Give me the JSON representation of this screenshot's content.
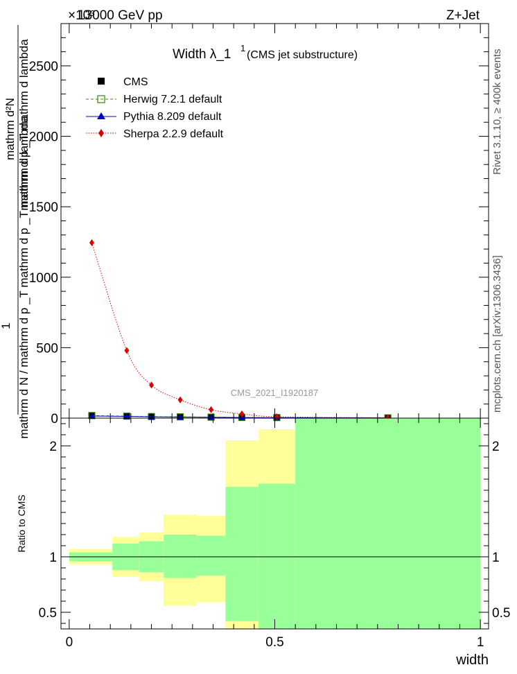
{
  "header": {
    "energy_label": "13000 GeV pp",
    "process_label": "Z+Jet",
    "exponent_label": "×10³"
  },
  "side_labels": {
    "rivet": "Rivet 3.1.10, ≥ 400k events",
    "mcplots": "mcplots.cern.ch [arXiv:1306.3436]"
  },
  "watermark": "CMS_2021_I1920187",
  "colors": {
    "cms": "#000000",
    "herwig": "#2e8b00",
    "pythia": "#0000cc",
    "sherpa": "#dd0000",
    "band_inner": "#99ff99",
    "band_outer": "#ffff99"
  },
  "chart_data": [
    {
      "type": "line",
      "title": "Width λ_1¹",
      "title_main": "Width λ_1",
      "title_sup": "1",
      "subtitle": "(CMS jet substructure)",
      "xlabel": "width",
      "ylabel_parts": [
        "1",
        "mathrm d N / mathrm d p  _T mathrm d p  _T mathrm d lambda",
        "mathrm d²N",
        "mathrm d p  _T  mathrm d lambda"
      ],
      "ylabel_top": "mathrm d²N",
      "ylabel_top_sub": "mathrm d p  _T  mathrm d lambda",
      "ylabel_one": "1",
      "ylabel_bottom": "mathrm d N / mathrm d p  _T mathrm d p  _T mathrm d lambda",
      "xlim": [
        -0.02,
        1.02
      ],
      "ylim": [
        0,
        2800
      ],
      "y_scale_note": "×10³",
      "xticks": [
        0,
        0.5,
        1
      ],
      "xtick_labels": [
        "0",
        "0.5",
        "1"
      ],
      "yticks": [
        0,
        500,
        1000,
        1500,
        2000,
        2500
      ],
      "ytick_labels": [
        "0",
        "500",
        "1000",
        "1500",
        "2000",
        "2500"
      ],
      "legend": [
        "CMS",
        "Herwig 7.2.1 default",
        "Pythia 8.209 default",
        "Sherpa 2.2.9 default"
      ],
      "legend_position": "top-left",
      "series": [
        {
          "name": "CMS",
          "x": [
            0.055,
            0.14,
            0.2,
            0.27,
            0.345,
            0.42,
            0.505,
            0.775
          ],
          "y": [
            20,
            15,
            12,
            10,
            8,
            6,
            4,
            2
          ]
        },
        {
          "name": "Herwig 7.2.1 default",
          "x": [
            0.055,
            0.14,
            0.2,
            0.27,
            0.345,
            0.42,
            0.505,
            0.775
          ],
          "y": [
            18,
            14,
            11,
            9,
            7,
            5,
            4,
            2
          ]
        },
        {
          "name": "Pythia 8.209 default",
          "x": [
            0.055,
            0.14,
            0.2,
            0.27,
            0.345,
            0.42,
            0.505,
            0.775
          ],
          "y": [
            15,
            12,
            10,
            8,
            6,
            4,
            3,
            2
          ]
        },
        {
          "name": "Sherpa 2.2.9 default",
          "x": [
            0.055,
            0.14,
            0.2,
            0.27,
            0.345,
            0.42,
            0.505,
            0.775
          ],
          "y": [
            1245,
            480,
            235,
            130,
            60,
            30,
            10,
            3
          ]
        }
      ]
    },
    {
      "type": "area",
      "title": "Ratio to CMS",
      "ylabel": "Ratio to CMS",
      "xlabel": "width",
      "xlim": [
        -0.02,
        1.02
      ],
      "ylim": [
        0.35,
        2.25
      ],
      "yticks": [
        0.5,
        1,
        2
      ],
      "ytick_labels": [
        "0.5",
        "1",
        "2"
      ],
      "xticks": [
        0,
        0.5,
        1
      ],
      "xtick_labels": [
        "0",
        "0.5",
        "1"
      ],
      "reference_line": 1,
      "bins": [
        {
          "x": [
            0.0,
            0.105
          ],
          "inner": [
            0.96,
            1.04
          ],
          "outer": [
            0.93,
            1.07
          ]
        },
        {
          "x": [
            0.105,
            0.17
          ],
          "inner": [
            0.88,
            1.12
          ],
          "outer": [
            0.82,
            1.18
          ]
        },
        {
          "x": [
            0.17,
            0.23
          ],
          "inner": [
            0.86,
            1.14
          ],
          "outer": [
            0.78,
            1.22
          ]
        },
        {
          "x": [
            0.23,
            0.31
          ],
          "inner": [
            0.81,
            1.2
          ],
          "outer": [
            0.56,
            1.38
          ]
        },
        {
          "x": [
            0.31,
            0.38
          ],
          "inner": [
            0.83,
            1.19
          ],
          "outer": [
            0.59,
            1.37
          ]
        },
        {
          "x": [
            0.38,
            0.46
          ],
          "inner": [
            0.35,
            1.63
          ],
          "outer": [
            0.35,
            2.05
          ]
        },
        {
          "x": [
            0.46,
            0.55
          ],
          "inner": [
            0.35,
            1.66
          ],
          "outer": [
            0.35,
            2.15
          ]
        },
        {
          "x": [
            0.55,
            1.0
          ],
          "inner": [
            0.35,
            2.25
          ],
          "outer": [
            0.35,
            2.25
          ]
        }
      ]
    }
  ]
}
